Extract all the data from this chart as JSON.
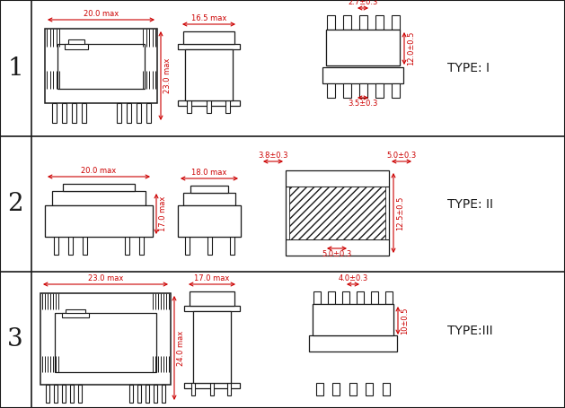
{
  "background_color": "#ffffff",
  "line_color": "#1a1a1a",
  "dim_color": "#cc0000",
  "rows": [
    {
      "row_num": "1",
      "type_label": "TYPE: I",
      "dims": {
        "width1": "20.0 max",
        "width2": "16.5 max",
        "height1": "23.0 max",
        "pin_top": "2.7±0.3",
        "total_h": "12.0±0.5",
        "pin_bot": "3.5±0.3"
      }
    },
    {
      "row_num": "2",
      "type_label": "TYPE: II",
      "dims": {
        "width1": "20.0 max",
        "width2": "18.0 max",
        "height1": "17.0 max",
        "pin_left": "3.8±0.3",
        "pin_right": "5.0±0.3",
        "total_h": "12.5±0.5",
        "pin_bot": "5.0±0.3"
      }
    },
    {
      "row_num": "3",
      "type_label": "TYPE:III",
      "dims": {
        "width1": "23.0 max",
        "width2": "17.0 max",
        "height1": "24.0 max",
        "pin_top": "4.0±0.3",
        "total_h": "10±0.5"
      }
    }
  ]
}
